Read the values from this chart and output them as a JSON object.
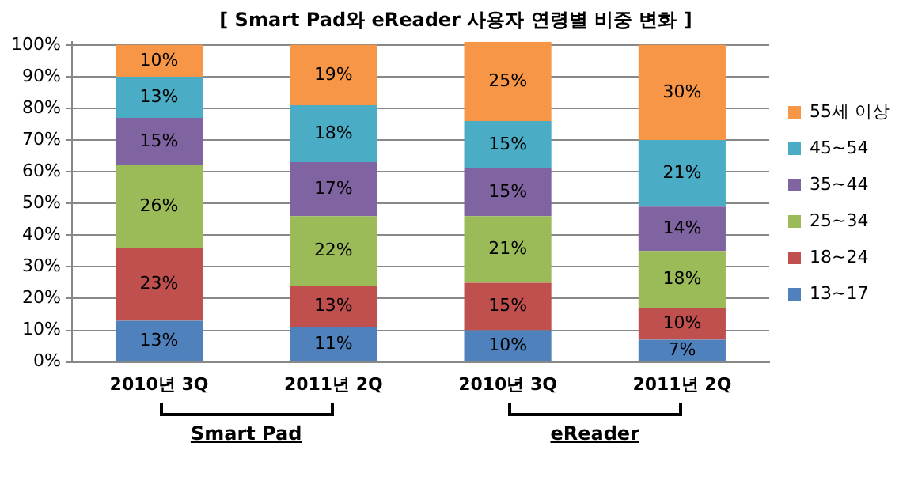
{
  "chart_data": {
    "type": "bar",
    "stacked": true,
    "title": "[ Smart Pad와 eReader 사용자 연령별 비중 변화 ]",
    "categories": [
      "2010년 3Q",
      "2011년 2Q",
      "2010년 3Q",
      "2011년 2Q"
    ],
    "series": [
      {
        "name": "13~17",
        "color": "#4f81bd",
        "values": [
          13,
          11,
          10,
          7
        ],
        "value_labels": [
          "13%",
          "11%",
          "10%",
          "7%"
        ]
      },
      {
        "name": "18~24",
        "color": "#c0504d",
        "values": [
          23,
          13,
          15,
          10
        ],
        "value_labels": [
          "23%",
          "13%",
          "15%",
          "10%"
        ]
      },
      {
        "name": "25~34",
        "color": "#9bbb59",
        "values": [
          26,
          22,
          21,
          18
        ],
        "value_labels": [
          "26%",
          "22%",
          "21%",
          "18%"
        ]
      },
      {
        "name": "35~44",
        "color": "#8064a2",
        "values": [
          15,
          17,
          15,
          14
        ],
        "value_labels": [
          "15%",
          "17%",
          "15%",
          "14%"
        ]
      },
      {
        "name": "45~54",
        "color": "#4bacc6",
        "values": [
          13,
          18,
          15,
          21
        ],
        "value_labels": [
          "13%",
          "18%",
          "15%",
          "21%"
        ]
      },
      {
        "name": "55세 이상",
        "color": "#f79646",
        "values": [
          10,
          19,
          25,
          30
        ],
        "value_labels": [
          "10%",
          "19%",
          "25%",
          "30%"
        ]
      }
    ],
    "ylim": [
      0,
      101
    ],
    "yticks": [
      {
        "value": 0,
        "label": "0%"
      },
      {
        "value": 10,
        "label": "10%"
      },
      {
        "value": 20,
        "label": "20%"
      },
      {
        "value": 30,
        "label": "30%"
      },
      {
        "value": 40,
        "label": "40%"
      },
      {
        "value": 50,
        "label": "50%"
      },
      {
        "value": 60,
        "label": "60%"
      },
      {
        "value": 70,
        "label": "70%"
      },
      {
        "value": 80,
        "label": "80%"
      },
      {
        "value": 90,
        "label": "90%"
      },
      {
        "value": 100,
        "label": "100%"
      }
    ],
    "grid": "y",
    "legend": "right",
    "annotations": [
      "Smart Pad",
      "eReader"
    ]
  }
}
